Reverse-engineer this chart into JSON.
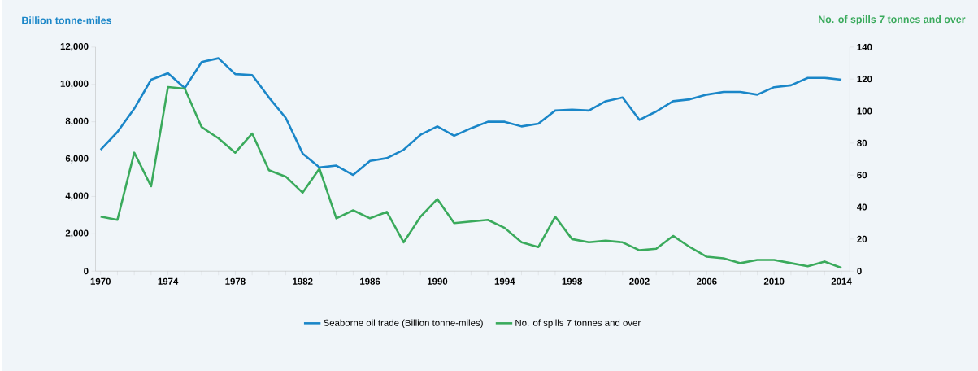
{
  "chart_data": {
    "type": "line",
    "x": [
      1970,
      1971,
      1972,
      1973,
      1974,
      1975,
      1976,
      1977,
      1978,
      1979,
      1980,
      1981,
      1982,
      1983,
      1984,
      1985,
      1986,
      1987,
      1988,
      1989,
      1990,
      1991,
      1992,
      1993,
      1994,
      1995,
      1996,
      1997,
      1998,
      1999,
      2000,
      2001,
      2002,
      2003,
      2004,
      2005,
      2006,
      2007,
      2008,
      2009,
      2010,
      2011,
      2012,
      2013,
      2014
    ],
    "series": [
      {
        "name": "Seaborne oil trade (Billion tonne-miles)",
        "color": "#1a86c8",
        "values": [
          6500,
          7450,
          8700,
          10250,
          10600,
          9800,
          11200,
          11400,
          10550,
          10500,
          9300,
          8200,
          6300,
          5550,
          5650,
          5150,
          5900,
          6050,
          6500,
          7300,
          7750,
          7250,
          7650,
          8000,
          8000,
          7750,
          7900,
          8600,
          8650,
          8600,
          9100,
          9300,
          8100,
          8550,
          9100,
          9200,
          9450,
          9600,
          9600,
          9450,
          9850,
          9950,
          10350,
          10350,
          10250
        ]
      },
      {
        "name": "No. of spills 7 tonnes and over",
        "color": "#3aaa5c",
        "axis": "y2",
        "values": [
          34,
          32,
          74,
          53,
          115,
          114,
          90,
          83,
          74,
          86,
          63,
          59,
          49,
          64,
          33,
          38,
          33,
          37,
          18,
          34,
          45,
          30,
          31,
          32,
          27,
          18,
          15,
          34,
          20,
          18,
          19,
          18,
          13,
          14,
          22,
          15,
          9,
          8,
          5,
          7,
          7,
          5,
          3,
          6,
          2
        ]
      }
    ],
    "ylabel": "Billion tonne-miles",
    "y2label": "No. of  spills 7 tonnes and over",
    "xlim": [
      1969.7,
      2014.5
    ],
    "xticks": [
      1970,
      {
        "value": 1971,
        "label": null
      },
      {
        "value": 1972,
        "label": null
      },
      {
        "value": 1973,
        "label": null
      },
      1974,
      {
        "value": 1975,
        "label": null
      },
      {
        "value": 1976,
        "label": null
      },
      {
        "value": 1977,
        "label": null
      },
      1978,
      {
        "value": 1979,
        "label": null
      },
      {
        "value": 1980,
        "label": null
      },
      {
        "value": 1981,
        "label": null
      },
      1982,
      {
        "value": 1983,
        "label": null
      },
      {
        "value": 1984,
        "label": null
      },
      {
        "value": 1985,
        "label": null
      },
      1986,
      {
        "value": 1987,
        "label": null
      },
      {
        "value": 1988,
        "label": null
      },
      {
        "value": 1989,
        "label": null
      },
      1990,
      {
        "value": 1991,
        "label": null
      },
      {
        "value": 1992,
        "label": null
      },
      {
        "value": 1993,
        "label": null
      },
      1994,
      {
        "value": 1995,
        "label": null
      },
      {
        "value": 1996,
        "label": null
      },
      {
        "value": 1997,
        "label": null
      },
      1998,
      {
        "value": 1999,
        "label": null
      },
      {
        "value": 2000,
        "label": null
      },
      {
        "value": 2001,
        "label": null
      },
      2002,
      {
        "value": 2003,
        "label": null
      },
      {
        "value": 2004,
        "label": null
      },
      {
        "value": 2005,
        "label": null
      },
      2006,
      {
        "value": 2007,
        "label": null
      },
      {
        "value": 2008,
        "label": null
      },
      {
        "value": 2009,
        "label": null
      },
      2010,
      {
        "value": 2011,
        "label": null
      },
      {
        "value": 2012,
        "label": null
      },
      {
        "value": 2013,
        "label": null
      },
      2014
    ],
    "ylim": [
      0,
      12000
    ],
    "yticks": [
      0,
      {
        "value": 2000,
        "label": "2,000"
      },
      {
        "value": 4000,
        "label": "4,000"
      },
      {
        "value": 6000,
        "label": "6,000"
      },
      {
        "value": 8000,
        "label": "8,000"
      },
      {
        "value": 10000,
        "label": "10,000"
      },
      {
        "value": 12000,
        "label": "12,000"
      }
    ],
    "y2lim": [
      0,
      140
    ],
    "y2ticks": [
      0,
      20,
      40,
      60,
      80,
      100,
      120,
      140
    ],
    "legend": "bottom",
    "grid": false
  }
}
